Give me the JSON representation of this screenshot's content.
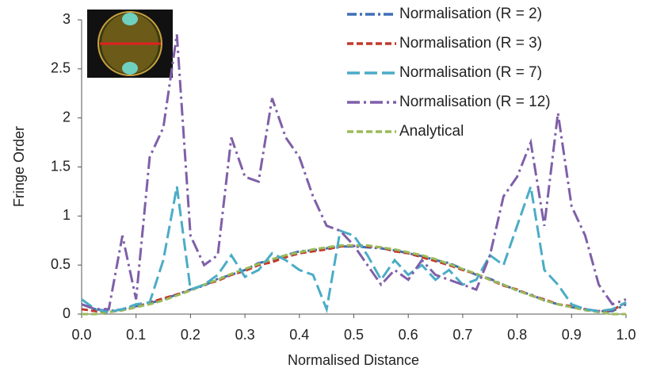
{
  "chart_data": {
    "type": "line",
    "xlabel": "Normalised Distance",
    "ylabel": "Fringe Order",
    "x": [
      0,
      0.025,
      0.05,
      0.075,
      0.1,
      0.125,
      0.15,
      0.175,
      0.2,
      0.225,
      0.25,
      0.275,
      0.3,
      0.325,
      0.35,
      0.375,
      0.4,
      0.425,
      0.45,
      0.475,
      0.5,
      0.525,
      0.55,
      0.575,
      0.6,
      0.625,
      0.65,
      0.675,
      0.7,
      0.725,
      0.75,
      0.775,
      0.8,
      0.825,
      0.85,
      0.875,
      0.9,
      0.925,
      0.95,
      0.975,
      1.0
    ],
    "series": [
      {
        "name": "Normalisation (R = 2)",
        "color": "#3f6fb5",
        "dash": "dash-dot",
        "values": [
          0.1,
          0.05,
          0.03,
          0.05,
          0.08,
          0.11,
          0.15,
          0.2,
          0.25,
          0.29,
          0.36,
          0.4,
          0.45,
          0.52,
          0.55,
          0.6,
          0.64,
          0.65,
          0.67,
          0.69,
          0.69,
          0.68,
          0.67,
          0.65,
          0.62,
          0.59,
          0.55,
          0.52,
          0.46,
          0.4,
          0.36,
          0.3,
          0.24,
          0.2,
          0.14,
          0.1,
          0.07,
          0.05,
          0.03,
          0.03,
          0.1
        ]
      },
      {
        "name": "Normalisation (R = 3)",
        "color": "#c0392b",
        "dash": "dash",
        "values": [
          0.05,
          0.03,
          0.02,
          0.04,
          0.07,
          0.12,
          0.16,
          0.2,
          0.24,
          0.3,
          0.34,
          0.4,
          0.44,
          0.5,
          0.53,
          0.58,
          0.62,
          0.64,
          0.66,
          0.69,
          0.7,
          0.69,
          0.68,
          0.64,
          0.62,
          0.58,
          0.54,
          0.5,
          0.45,
          0.41,
          0.35,
          0.29,
          0.25,
          0.19,
          0.15,
          0.1,
          0.08,
          0.05,
          0.03,
          0.04,
          0.12
        ]
      },
      {
        "name": "Normalisation (R = 7)",
        "color": "#4bacc6",
        "dash": "long-dash",
        "values": [
          0.15,
          0.05,
          0.02,
          0.05,
          0.1,
          0.12,
          0.55,
          1.3,
          0.25,
          0.3,
          0.4,
          0.6,
          0.38,
          0.45,
          0.62,
          0.55,
          0.45,
          0.4,
          0.05,
          0.85,
          0.8,
          0.6,
          0.35,
          0.55,
          0.4,
          0.5,
          0.35,
          0.45,
          0.3,
          0.35,
          0.6,
          0.5,
          0.9,
          1.3,
          0.45,
          0.3,
          0.1,
          0.05,
          0.03,
          0.05,
          0.12
        ]
      },
      {
        "name": "Normalisation (R = 12)",
        "color": "#7f5fa8",
        "dash": "long-dash-dot",
        "values": [
          0.1,
          0.05,
          0.05,
          0.8,
          0.15,
          1.6,
          1.9,
          2.85,
          0.8,
          0.5,
          0.6,
          1.8,
          1.4,
          1.35,
          2.2,
          1.8,
          1.6,
          1.2,
          0.9,
          0.85,
          0.7,
          0.5,
          0.3,
          0.45,
          0.35,
          0.55,
          0.4,
          0.35,
          0.3,
          0.25,
          0.6,
          1.2,
          1.4,
          1.75,
          0.9,
          2.05,
          1.1,
          0.8,
          0.3,
          0.1,
          0.15
        ]
      },
      {
        "name": "Analytical",
        "color": "#9bbb59",
        "dash": "dash",
        "values": [
          0,
          0,
          0.02,
          0.04,
          0.07,
          0.1,
          0.14,
          0.19,
          0.24,
          0.3,
          0.35,
          0.41,
          0.46,
          0.51,
          0.56,
          0.6,
          0.63,
          0.66,
          0.68,
          0.7,
          0.7,
          0.7,
          0.68,
          0.66,
          0.63,
          0.6,
          0.56,
          0.51,
          0.46,
          0.41,
          0.35,
          0.3,
          0.24,
          0.19,
          0.14,
          0.1,
          0.07,
          0.04,
          0.02,
          0,
          0
        ]
      }
    ],
    "xlim": [
      0,
      1.0
    ],
    "ylim": [
      0,
      3
    ],
    "xticks": [
      {
        "value": 0,
        "label": "0.0"
      },
      0.1,
      0.2,
      0.3,
      0.4,
      0.5,
      0.6,
      0.7,
      0.8,
      0.9,
      {
        "value": 1.0,
        "label": "1.0"
      }
    ],
    "yticks": [
      0,
      0.5,
      1,
      1.5,
      2,
      2.5,
      3
    ],
    "grid": false,
    "legend": "top-right"
  }
}
